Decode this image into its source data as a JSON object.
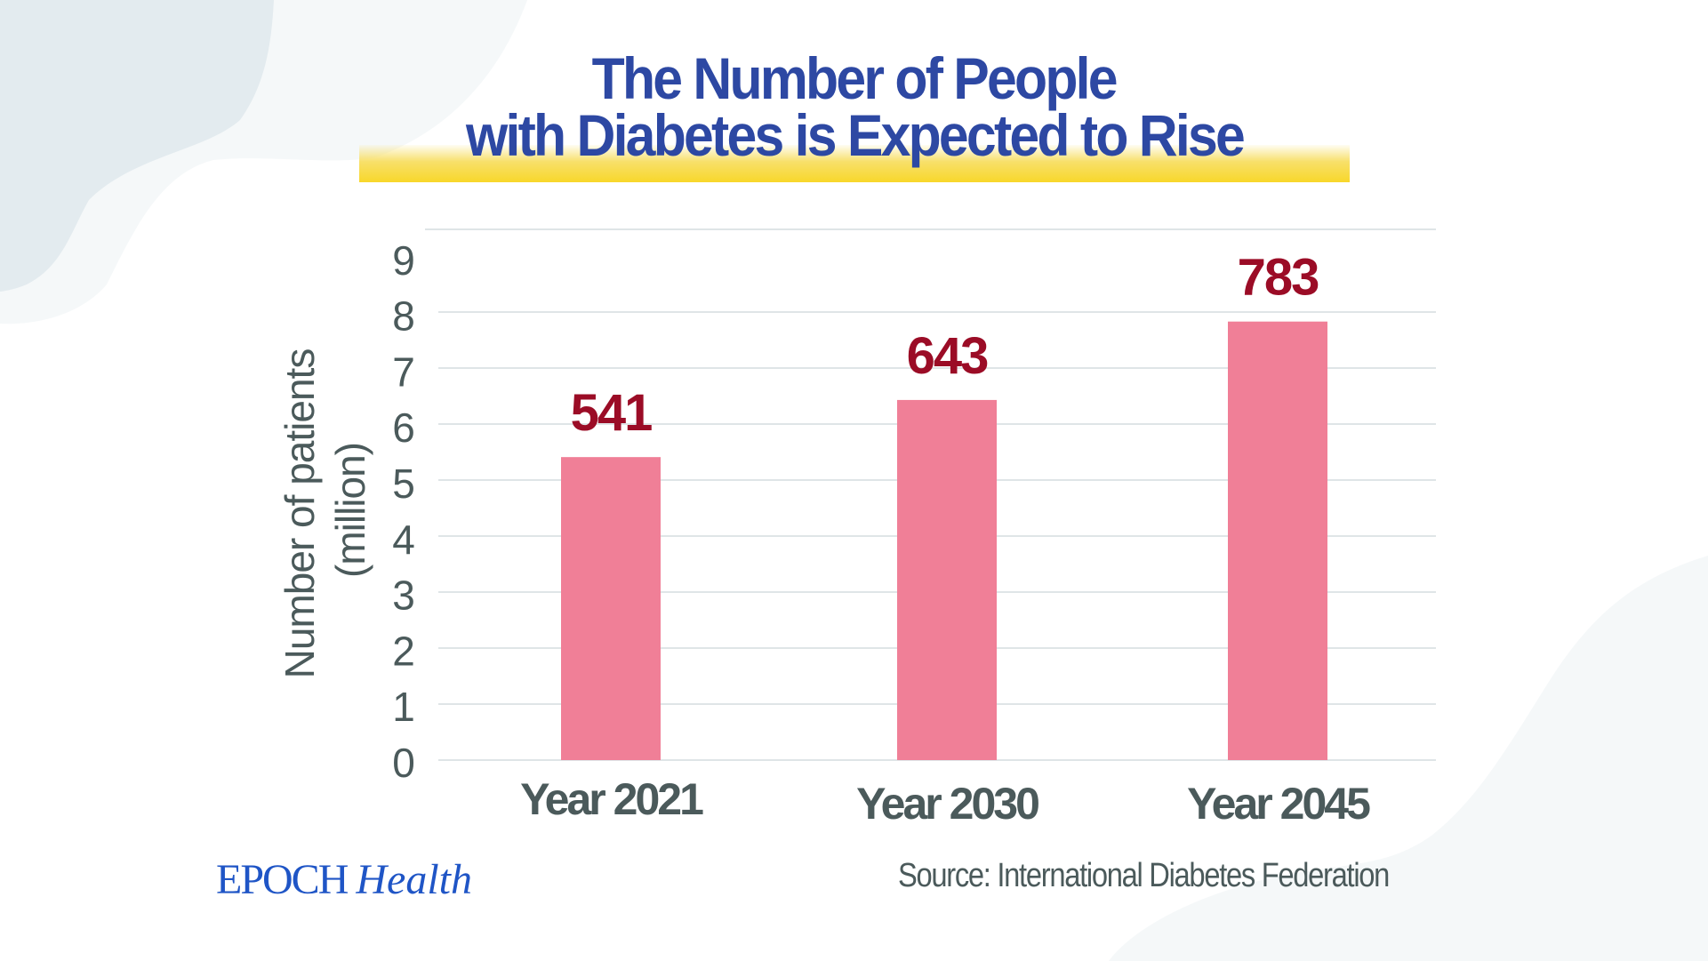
{
  "title": {
    "line1": "The Number of People",
    "line2": "with Diabetes is Expected to Rise"
  },
  "colors": {
    "title": "#2d48a3",
    "highlight": "#f8d72a",
    "bar": "#f07f97",
    "data_label": "#9b0c26",
    "axis_text": "#4b5a5b",
    "gridline": "#dfe5e7",
    "logo": "#1f55c6"
  },
  "chart_data": {
    "type": "bar",
    "title": "The Number of People with Diabetes is Expected to Rise",
    "categories": [
      "Year 2021",
      "Year 2030",
      "Year 2045"
    ],
    "values": [
      541,
      643,
      783
    ],
    "data_labels": [
      "541",
      "643",
      "783"
    ],
    "xlabel": "",
    "ylabel": "Number of patients",
    "ylabel_line2": "(million)",
    "yticks": [
      "0",
      "1",
      "2",
      "3",
      "4",
      "5",
      "6",
      "7",
      "8",
      "9"
    ],
    "ylim": [
      0,
      9
    ],
    "value_to_axis_divisor": 100,
    "grid": true,
    "legend": "none"
  },
  "footer": {
    "logo_main": "EPOCH",
    "logo_sub": "Health",
    "source": "Source: International Diabetes Federation"
  }
}
